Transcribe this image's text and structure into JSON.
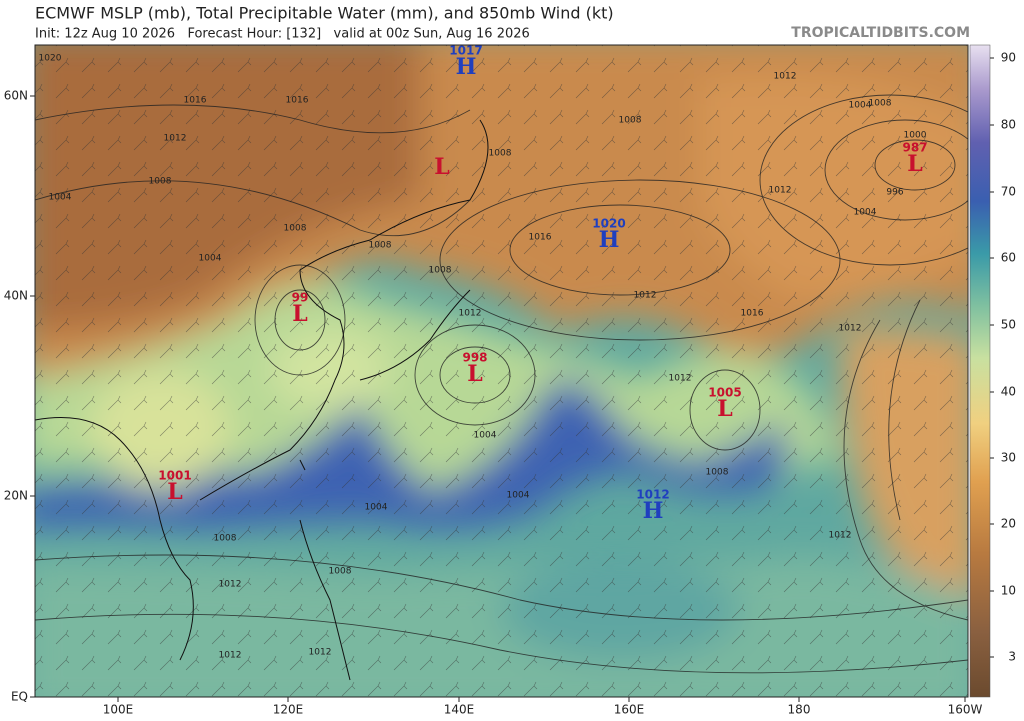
{
  "header": {
    "title": "ECMWF MSLP (mb), Total Precipitable Water (mm), and 850mb Wind (kt)",
    "subtitle": "Init: 12z Aug 10 2026   Forecast Hour: [132]   valid at 00z Sun, Aug 16 2026",
    "site": "TROPICALTIDBITS.COM"
  },
  "map": {
    "lat_labels": [
      "60N",
      "40N",
      "20N",
      "EQ"
    ],
    "lon_labels": [
      "100E",
      "120E",
      "140E",
      "160E",
      "180",
      "160W"
    ],
    "centers": [
      {
        "symbol": "H",
        "value": "1017"
      },
      {
        "symbol": "L",
        "value": ""
      },
      {
        "symbol": "L",
        "value": "99"
      },
      {
        "symbol": "L",
        "value": "998"
      },
      {
        "symbol": "L",
        "value": "1001"
      },
      {
        "symbol": "H",
        "value": "1020"
      },
      {
        "symbol": "L",
        "value": "987"
      },
      {
        "symbol": "L",
        "value": "1005"
      },
      {
        "symbol": "H",
        "value": "1012"
      }
    ],
    "isobar_labels": [
      "1020",
      "1016",
      "1016",
      "1012",
      "1008",
      "1004",
      "1008",
      "1004",
      "1008",
      "1012",
      "1016",
      "1012",
      "1008",
      "1004",
      "996",
      "1000",
      "1004",
      "1008",
      "1012",
      "1016",
      "1012",
      "1012",
      "1004",
      "1008",
      "1004",
      "1004",
      "1008",
      "1012",
      "1008",
      "1012",
      "1012",
      "1012",
      "1008",
      "1012",
      "1008"
    ]
  },
  "colorbar": {
    "ticks": [
      90,
      80,
      70,
      60,
      50,
      40,
      30,
      20,
      10,
      3
    ]
  }
}
